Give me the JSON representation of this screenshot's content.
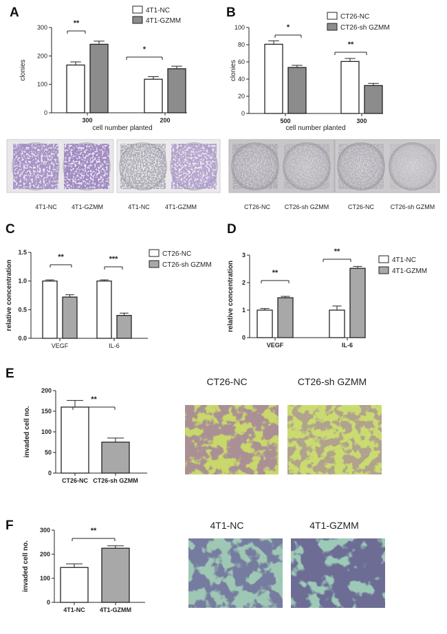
{
  "colors": {
    "bar_control": "#ffffff",
    "bar_treated": "#8c8c8c",
    "bar_treated_light": "#a8a8a8",
    "axis": "#222222"
  },
  "chart_data": [
    {
      "panel": "A",
      "type": "bar",
      "categories": [
        "300",
        "200"
      ],
      "xlabel": "cell number planted",
      "ylabel": "clonies",
      "ylim": [
        0,
        300
      ],
      "yticks": [
        0,
        100,
        200,
        300
      ],
      "series": [
        {
          "name": "4T1-NC",
          "values": [
            168,
            118
          ],
          "errors": [
            11,
            9
          ]
        },
        {
          "name": "4T1-GZMM",
          "values": [
            241,
            155
          ],
          "errors": [
            11,
            9
          ]
        }
      ],
      "significance": [
        "**",
        "*"
      ],
      "legend": "top-right"
    },
    {
      "panel": "B",
      "type": "bar",
      "categories": [
        "500",
        "300"
      ],
      "xlabel": "cell number planted",
      "ylabel": "clonies",
      "ylim": [
        0,
        100
      ],
      "yticks": [
        0,
        20,
        40,
        60,
        80,
        100
      ],
      "series": [
        {
          "name": "CT26-NC",
          "values": [
            80.5,
            60.5
          ],
          "errors": [
            4,
            3.5
          ]
        },
        {
          "name": "CT26-sh GZMM",
          "values": [
            53.5,
            32.5
          ],
          "errors": [
            2.5,
            2.5
          ]
        }
      ],
      "significance": [
        "*",
        "**"
      ],
      "legend": "top-right"
    },
    {
      "panel": "C",
      "type": "bar",
      "categories": [
        "VEGF",
        "IL-6"
      ],
      "xlabel": "",
      "ylabel": "relative concentration",
      "ylim": [
        0,
        1.5
      ],
      "yticks": [
        "0.0",
        "0.5",
        "1.0",
        "1.5"
      ],
      "series": [
        {
          "name": "CT26-NC",
          "values": [
            1.0,
            1.0
          ],
          "errors": [
            0.02,
            0.02
          ]
        },
        {
          "name": "CT26-sh GZMM",
          "values": [
            0.72,
            0.4
          ],
          "errors": [
            0.04,
            0.04
          ]
        }
      ],
      "significance": [
        "**",
        "***"
      ],
      "legend": "right"
    },
    {
      "panel": "D",
      "type": "bar",
      "categories": [
        "VEGF",
        "IL-6"
      ],
      "xlabel": "",
      "ylabel": "relative concentration",
      "ylim": [
        0,
        3
      ],
      "yticks": [
        0,
        1,
        2,
        3
      ],
      "series": [
        {
          "name": "4T1-NC",
          "values": [
            1.0,
            1.0
          ],
          "errors": [
            0.06,
            0.15
          ]
        },
        {
          "name": "4T1-GZMM",
          "values": [
            1.45,
            2.52
          ],
          "errors": [
            0.05,
            0.07
          ]
        }
      ],
      "significance": [
        "**",
        "**"
      ],
      "legend": "top-right"
    },
    {
      "panel": "E",
      "type": "bar",
      "categories": [
        "CT26-NC",
        "CT26-sh GZMM"
      ],
      "xlabel": "",
      "ylabel": "invaded cell no.",
      "ylim": [
        0,
        200
      ],
      "yticks": [
        0,
        50,
        100,
        150,
        200
      ],
      "values": [
        160,
        75
      ],
      "errors": [
        16,
        10
      ],
      "significance": [
        "**"
      ]
    },
    {
      "panel": "F",
      "type": "bar",
      "categories": [
        "4T1-NC",
        "4T1-GZMM"
      ],
      "xlabel": "",
      "ylabel": "invaded cell no.",
      "ylim": [
        0,
        300
      ],
      "yticks": [
        0,
        100,
        200,
        300
      ],
      "values": [
        145,
        225
      ],
      "errors": [
        15,
        10
      ],
      "significance": [
        "**"
      ]
    }
  ],
  "images": {
    "A_labels": [
      "4T1-NC",
      "4T1-GZMM",
      "4T1-NC",
      "4T1-GZMM"
    ],
    "B_labels": [
      "CT26-NC",
      "CT26-sh GZMM",
      "CT26-NC",
      "CT26-sh GZMM"
    ],
    "E_titles": [
      "CT26-NC",
      "CT26-sh GZMM"
    ],
    "F_titles": [
      "4T1-NC",
      "4T1-GZMM"
    ]
  }
}
